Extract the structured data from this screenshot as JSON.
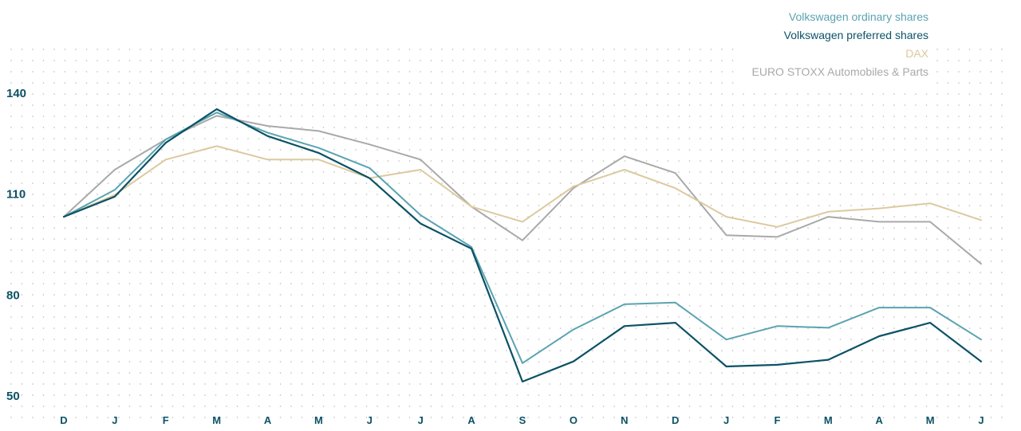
{
  "colors": {
    "background": "#ffffff",
    "dots": "#b9b9b9",
    "tick_labels": "#0b5266"
  },
  "chart_data": {
    "type": "line",
    "title": "",
    "xlabel": "",
    "ylabel": "",
    "categories": [
      "D",
      "J",
      "F",
      "M",
      "A",
      "M",
      "J",
      "J",
      "A",
      "S",
      "O",
      "N",
      "D",
      "J",
      "F",
      "M",
      "A",
      "M",
      "J"
    ],
    "y_ticks": [
      50,
      80,
      110,
      140
    ],
    "ylim": [
      50,
      140
    ],
    "grid": "dotted",
    "legend_position": "top-right",
    "series": [
      {
        "name": "Volkswagen ordinary shares",
        "color": "#5aa3b1",
        "values": [
          103.5,
          111.5,
          126.5,
          134.5,
          128.5,
          124,
          118,
          104,
          94.5,
          60,
          70,
          77.5,
          78,
          67,
          71,
          70.5,
          76.5,
          76.5,
          67
        ]
      },
      {
        "name": "Volkswagen preferred shares",
        "color": "#0b5266",
        "values": [
          103.5,
          109.5,
          125.5,
          135.5,
          127.5,
          122.5,
          115,
          101.5,
          94,
          54.5,
          60.5,
          71,
          72,
          59,
          59.5,
          61,
          68,
          72,
          60.5
        ]
      },
      {
        "name": "DAX",
        "color": "#dcc99e",
        "values": [
          103.5,
          110,
          120.5,
          124.5,
          120.5,
          120.5,
          115,
          117.5,
          106.5,
          102,
          112.5,
          117.5,
          112,
          103.5,
          100.5,
          105,
          106,
          107.5,
          102.5
        ]
      },
      {
        "name": "EURO STOXX Automobiles & Parts",
        "color": "#a9a9a9",
        "values": [
          103.5,
          117.5,
          126.5,
          133.5,
          130.5,
          129,
          125,
          120.5,
          106.5,
          96.5,
          112,
          121.5,
          116.5,
          98,
          97.5,
          103.5,
          102,
          102,
          89.5
        ]
      }
    ]
  }
}
